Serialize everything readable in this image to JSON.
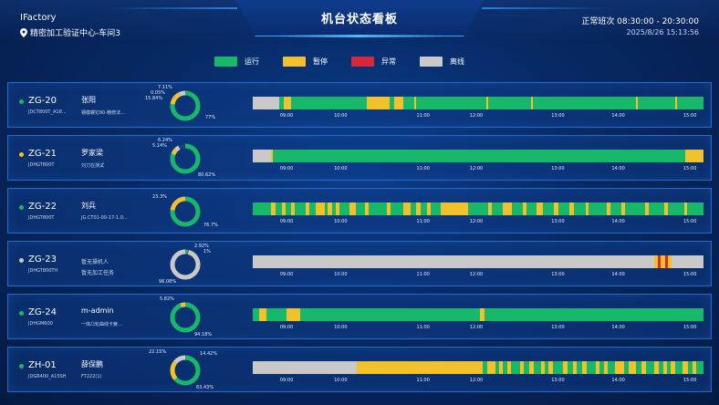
{
  "header": {
    "brand": "IFactory",
    "location": "精密加工验证中心-车间3",
    "title": "机台状态看板",
    "shift": "正常班次 08:30:00 - 20:30:00",
    "datetime": "2025/8/26 15:13:56"
  },
  "colors": {
    "run": "#18b86b",
    "pause": "#f0c12b",
    "abnormal": "#d8263a",
    "offline": "#c9c9c9"
  },
  "legend": [
    {
      "label": "运行",
      "color": "#18b86b"
    },
    {
      "label": "暂停",
      "color": "#f0c12b"
    },
    {
      "label": "异常",
      "color": "#d8263a"
    },
    {
      "label": "离线",
      "color": "#c9c9c9"
    }
  ],
  "ticks": [
    "09:00",
    "10:00",
    "11:00",
    "12:00",
    "13:00",
    "14:00",
    "15:00"
  ],
  "machines": [
    {
      "name": "ZG-20",
      "code": "JDCT800T_A18...",
      "operator": "张阳",
      "task": "钢模螺钉80-精修法...",
      "status_color": "#18b86b",
      "operator_dim": false,
      "pct_labels": [
        "7.11%",
        "0.05%",
        "15.84%",
        "77%"
      ],
      "donut": [
        0.77,
        0.1584,
        0.0005,
        0.0711
      ],
      "timeline": [
        [
          "o",
          6
        ],
        [
          "r",
          1
        ],
        [
          "p",
          1.5
        ],
        [
          "r",
          17
        ],
        [
          "p",
          5
        ],
        [
          "r",
          1
        ],
        [
          "p",
          2
        ],
        [
          "r",
          2.5
        ],
        [
          "p",
          0.5
        ],
        [
          "r",
          15.5
        ],
        [
          "p",
          0.5
        ],
        [
          "r",
          9.5
        ],
        [
          "p",
          0.5
        ],
        [
          "r",
          23
        ],
        [
          "p",
          0.3
        ],
        [
          "r",
          8.5
        ],
        [
          "p",
          0.3
        ],
        [
          "r",
          5.9
        ]
      ]
    },
    {
      "name": "ZG-21",
      "code": "JDHGT800T",
      "operator": "罗家梁",
      "task": "刘刀在测试",
      "status_color": "#f0c12b",
      "operator_dim": false,
      "pct_labels": [
        "6.24%",
        "5.14%",
        "80.62%"
      ],
      "donut": [
        0.8062,
        0.0624,
        0,
        0.0514
      ],
      "timeline": [
        [
          "o",
          4
        ],
        [
          "p",
          0.5
        ],
        [
          "r",
          91.5
        ],
        [
          "p",
          4
        ]
      ]
    },
    {
      "name": "ZG-22",
      "code": "JDHGT800T",
      "operator": "刘兵",
      "task": "JG.CT01-00-17-1.0...",
      "status_color": "#18b86b",
      "operator_dim": false,
      "pct_labels": [
        "23.3%",
        "76.7%"
      ],
      "donut": [
        0.767,
        0.233,
        0,
        0
      ],
      "timeline": [
        [
          "r",
          4
        ],
        [
          "p",
          1
        ],
        [
          "r",
          1.5
        ],
        [
          "p",
          0.8
        ],
        [
          "r",
          1.2
        ],
        [
          "p",
          0.8
        ],
        [
          "r",
          2.5
        ],
        [
          "p",
          0.8
        ],
        [
          "r",
          1.5
        ],
        [
          "p",
          2
        ],
        [
          "r",
          0.7
        ],
        [
          "p",
          1
        ],
        [
          "r",
          0.8
        ],
        [
          "p",
          0.8
        ],
        [
          "r",
          2.2
        ],
        [
          "p",
          1.5
        ],
        [
          "r",
          2
        ],
        [
          "p",
          0.8
        ],
        [
          "r",
          4
        ],
        [
          "p",
          0.8
        ],
        [
          "r",
          3
        ],
        [
          "p",
          1.5
        ],
        [
          "r",
          1.2
        ],
        [
          "p",
          1
        ],
        [
          "r",
          1.6
        ],
        [
          "p",
          0.8
        ],
        [
          "r",
          2.2
        ],
        [
          "p",
          6
        ],
        [
          "r",
          4.5
        ],
        [
          "p",
          0.8
        ],
        [
          "r",
          2.5
        ],
        [
          "p",
          2
        ],
        [
          "r",
          2.5
        ],
        [
          "p",
          0.8
        ],
        [
          "r",
          2.2
        ],
        [
          "p",
          1.5
        ],
        [
          "r",
          2.5
        ],
        [
          "p",
          1
        ],
        [
          "r",
          2.5
        ],
        [
          "p",
          1
        ],
        [
          "r",
          2.5
        ],
        [
          "p",
          0.8
        ],
        [
          "r",
          4
        ],
        [
          "p",
          0.8
        ],
        [
          "r",
          2.5
        ],
        [
          "p",
          0.8
        ],
        [
          "r",
          4.5
        ],
        [
          "p",
          0.8
        ],
        [
          "r",
          3.5
        ],
        [
          "p",
          0.8
        ],
        [
          "r",
          3.5
        ],
        [
          "p",
          0.8
        ],
        [
          "r",
          3.5
        ]
      ]
    },
    {
      "name": "ZG-23",
      "code": "JDHGT800TH",
      "operator": "暂无操机人",
      "task": "暂无加工任务",
      "status_color": "#c9c9c9",
      "operator_dim": true,
      "pct_labels": [
        "2.92%",
        "1%",
        "96.08%"
      ],
      "donut": [
        0.0292,
        0,
        0.01,
        0.9608
      ],
      "timeline": [
        [
          "o",
          89
        ],
        [
          "p",
          0.8
        ],
        [
          "a",
          0.6
        ],
        [
          "p",
          1.2
        ],
        [
          "a",
          0.5
        ],
        [
          "p",
          0.8
        ],
        [
          "o",
          7.1
        ]
      ]
    },
    {
      "name": "ZG-24",
      "code": "JDHGM600",
      "operator": "m-admin",
      "task": "一体凸轮曲线卡簧...",
      "status_color": "#18b86b",
      "operator_dim": false,
      "pct_labels": [
        "5.82%",
        "94.18%"
      ],
      "donut": [
        0.9418,
        0.0582,
        0,
        0
      ],
      "timeline": [
        [
          "r",
          1.5
        ],
        [
          "p",
          1.5
        ],
        [
          "r",
          4.5
        ],
        [
          "p",
          3
        ],
        [
          "r",
          40
        ],
        [
          "p",
          1
        ],
        [
          "r",
          48.5
        ]
      ]
    },
    {
      "name": "ZH-01",
      "code": "JDGR400_A15SH",
      "operator": "薛保鹏",
      "task": "FT222(1)",
      "status_color": "#18b86b",
      "operator_dim": false,
      "pct_labels": [
        "22.15%",
        "14.42%",
        "63.43%"
      ],
      "donut": [
        0.6343,
        0.2215,
        0,
        0.1442
      ],
      "timeline": [
        [
          "o",
          22.5
        ],
        [
          "p",
          27
        ],
        [
          "r",
          1
        ],
        [
          "p",
          1.8
        ],
        [
          "r",
          0.7
        ],
        [
          "p",
          0.8
        ],
        [
          "r",
          1
        ],
        [
          "p",
          0.8
        ],
        [
          "r",
          2
        ],
        [
          "p",
          0.8
        ],
        [
          "r",
          1.2
        ],
        [
          "p",
          1
        ],
        [
          "r",
          1.5
        ],
        [
          "p",
          0.8
        ],
        [
          "r",
          0.8
        ],
        [
          "p",
          1
        ],
        [
          "r",
          2.2
        ],
        [
          "p",
          1
        ],
        [
          "r",
          1.2
        ],
        [
          "p",
          0.8
        ],
        [
          "r",
          1
        ],
        [
          "p",
          1
        ],
        [
          "r",
          2
        ],
        [
          "p",
          0.8
        ],
        [
          "r",
          1
        ],
        [
          "p",
          0.8
        ],
        [
          "r",
          1.5
        ],
        [
          "p",
          2
        ],
        [
          "r",
          1
        ],
        [
          "p",
          1.5
        ],
        [
          "r",
          1.2
        ],
        [
          "p",
          1
        ],
        [
          "r",
          1.8
        ],
        [
          "p",
          1
        ],
        [
          "r",
          1
        ],
        [
          "p",
          0.8
        ],
        [
          "r",
          0.8
        ],
        [
          "p",
          1
        ],
        [
          "r",
          1.5
        ],
        [
          "p",
          1.2
        ],
        [
          "r",
          1
        ],
        [
          "p",
          0.8
        ],
        [
          "r",
          1.5
        ]
      ]
    }
  ]
}
